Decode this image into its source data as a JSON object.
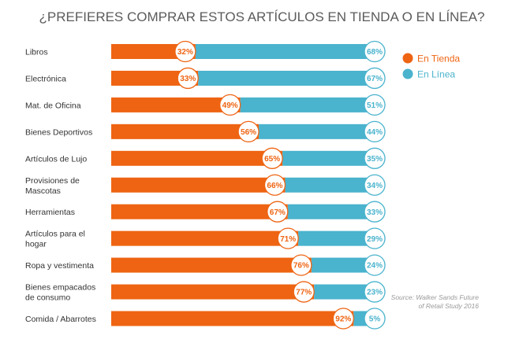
{
  "chart_data": {
    "type": "bar",
    "stacked": true,
    "orientation": "horizontal",
    "title": "¿PREFIERES COMPRAR ESTOS ARTÍCULOS EN TIENDA O EN LÍNEA?",
    "categories": [
      [
        "Libros"
      ],
      [
        "Electrónica"
      ],
      [
        "Mat. de Oficina"
      ],
      [
        "Bienes Deportivos"
      ],
      [
        "Artículos de Lujo"
      ],
      [
        "Provisiones de",
        "Mascotas"
      ],
      [
        "Herramientas"
      ],
      [
        "Artículos para el",
        "hogar"
      ],
      [
        "Ropa y vestimenta"
      ],
      [
        "Bienes empacados",
        "de consumo"
      ],
      [
        "Comida / Abarrotes"
      ]
    ],
    "series": [
      {
        "name": "En Tienda",
        "color": "#ee6412",
        "values": [
          32,
          33,
          49,
          56,
          65,
          66,
          67,
          71,
          76,
          77,
          92
        ]
      },
      {
        "name": "En Línea",
        "color": "#4ab3cd",
        "values": [
          68,
          67,
          51,
          44,
          35,
          34,
          33,
          29,
          24,
          23,
          5
        ]
      }
    ],
    "xlim": [
      0,
      100
    ],
    "value_suffix": "%",
    "legend_position": "right",
    "grid": false,
    "source_lines": [
      "Source: Walker Sands Future",
      "of Retail Study 2016"
    ]
  }
}
